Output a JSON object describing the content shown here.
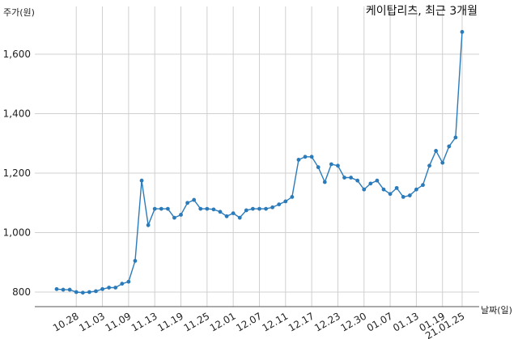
{
  "chart_data": {
    "type": "line",
    "title": "케이탑리츠, 최근 3개월",
    "ylabel": "주가(원)",
    "xlabel": "날짜(일)",
    "ylim": [
      750,
      1750
    ],
    "yticks": [
      800,
      1000,
      1200,
      1400,
      1600
    ],
    "ytick_labels": [
      "800",
      "1,000",
      "1,200",
      "1,400",
      "1,600"
    ],
    "xtick_labels": [
      "10.28",
      "11.03",
      "11.09",
      "11.13",
      "11.19",
      "11.25",
      "12.01",
      "12.07",
      "12.11",
      "12.17",
      "12.23",
      "12.30",
      "01.07",
      "01.13",
      "01.19",
      "21.01.25"
    ],
    "xtick_index": [
      3,
      7,
      11,
      15,
      19,
      23,
      27,
      31,
      35,
      39,
      43,
      47,
      51,
      55,
      59,
      62
    ],
    "grid": true,
    "series": [
      {
        "color": "#2b7bba",
        "values": [
          810,
          808,
          808,
          800,
          798,
          800,
          803,
          810,
          815,
          815,
          828,
          835,
          905,
          1175,
          1025,
          1080,
          1080,
          1080,
          1050,
          1060,
          1100,
          1110,
          1080,
          1080,
          1078,
          1070,
          1055,
          1065,
          1050,
          1075,
          1080,
          1080,
          1080,
          1085,
          1095,
          1105,
          1120,
          1245,
          1255,
          1255,
          1220,
          1170,
          1230,
          1225,
          1185,
          1185,
          1175,
          1145,
          1165,
          1175,
          1145,
          1130,
          1150,
          1120,
          1125,
          1145,
          1160,
          1225,
          1275,
          1235,
          1290,
          1320,
          1675
        ]
      }
    ]
  }
}
